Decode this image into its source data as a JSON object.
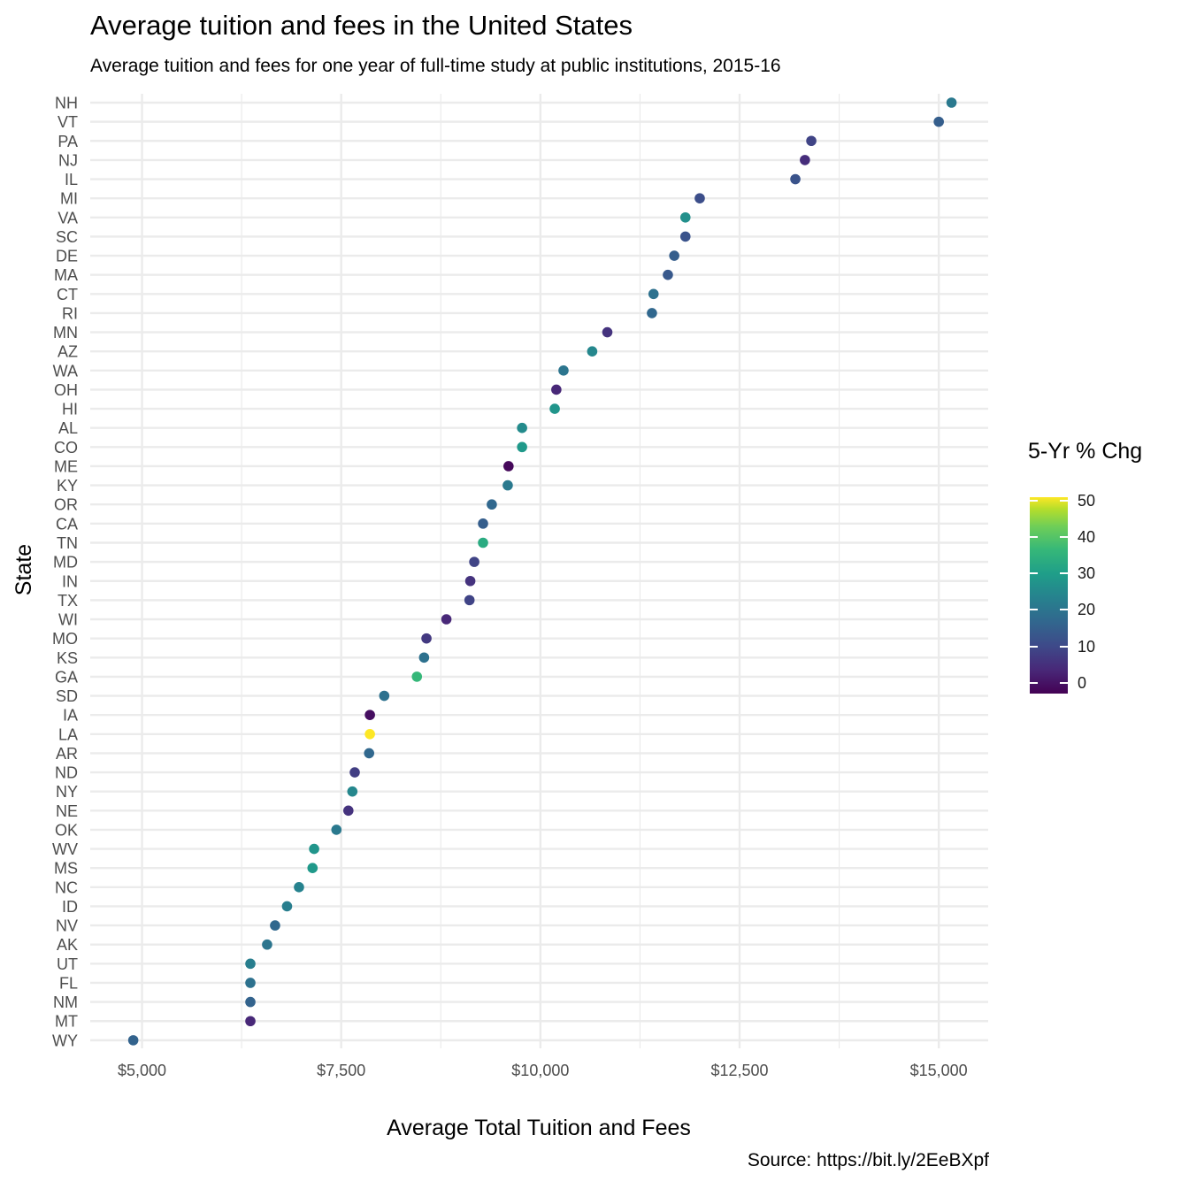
{
  "chart_data": {
    "type": "scatter",
    "title": "Average tuition and fees in the United States",
    "subtitle": "Average tuition and fees for one year of full-time study at public institutions, 2015-16",
    "caption": "Source: https://bit.ly/2EeBXpf",
    "xlabel": "Average Total Tuition and Fees",
    "ylabel": "State",
    "x_ticks": [
      "$5,000",
      "$7,500",
      "$10,000",
      "$12,500",
      "$15,000"
    ],
    "x_tick_values": [
      5000,
      7500,
      10000,
      12500,
      15000
    ],
    "xlim": [
      4350,
      15620
    ],
    "grid": true,
    "legend": {
      "title": "5-Yr % Chg",
      "placement": "right",
      "ticks": [
        "0",
        "10",
        "20",
        "30",
        "40",
        "50"
      ],
      "tick_values": [
        0,
        10,
        20,
        30,
        40,
        50
      ],
      "range": [
        -3,
        51
      ],
      "palette": "viridis",
      "colors": [
        "#440154",
        "#482878",
        "#3e4989",
        "#31688e",
        "#26828e",
        "#1f9e89",
        "#35b779",
        "#6ece58",
        "#b5de2b",
        "#fde725"
      ]
    },
    "points": [
      {
        "state": "NH",
        "x": 15160,
        "pct": 19
      },
      {
        "state": "VT",
        "x": 15000,
        "pct": 13
      },
      {
        "state": "PA",
        "x": 13400,
        "pct": 8
      },
      {
        "state": "NJ",
        "x": 13320,
        "pct": 4
      },
      {
        "state": "IL",
        "x": 13200,
        "pct": 11
      },
      {
        "state": "MI",
        "x": 12000,
        "pct": 10
      },
      {
        "state": "VA",
        "x": 11820,
        "pct": 24
      },
      {
        "state": "SC",
        "x": 11820,
        "pct": 11
      },
      {
        "state": "DE",
        "x": 11680,
        "pct": 13
      },
      {
        "state": "MA",
        "x": 11600,
        "pct": 12
      },
      {
        "state": "CT",
        "x": 11420,
        "pct": 17
      },
      {
        "state": "RI",
        "x": 11400,
        "pct": 15
      },
      {
        "state": "MN",
        "x": 10840,
        "pct": 5
      },
      {
        "state": "AZ",
        "x": 10650,
        "pct": 22
      },
      {
        "state": "WA",
        "x": 10290,
        "pct": 18
      },
      {
        "state": "OH",
        "x": 10200,
        "pct": 3
      },
      {
        "state": "HI",
        "x": 10180,
        "pct": 25
      },
      {
        "state": "AL",
        "x": 9770,
        "pct": 23
      },
      {
        "state": "CO",
        "x": 9770,
        "pct": 26
      },
      {
        "state": "ME",
        "x": 9600,
        "pct": -2
      },
      {
        "state": "KY",
        "x": 9590,
        "pct": 19
      },
      {
        "state": "OR",
        "x": 9390,
        "pct": 15
      },
      {
        "state": "CA",
        "x": 9280,
        "pct": 13
      },
      {
        "state": "TN",
        "x": 9280,
        "pct": 30
      },
      {
        "state": "MD",
        "x": 9170,
        "pct": 8
      },
      {
        "state": "IN",
        "x": 9120,
        "pct": 5
      },
      {
        "state": "TX",
        "x": 9110,
        "pct": 8
      },
      {
        "state": "WI",
        "x": 8820,
        "pct": 3
      },
      {
        "state": "MO",
        "x": 8570,
        "pct": 6
      },
      {
        "state": "KS",
        "x": 8540,
        "pct": 17
      },
      {
        "state": "GA",
        "x": 8450,
        "pct": 33
      },
      {
        "state": "SD",
        "x": 8040,
        "pct": 17
      },
      {
        "state": "IA",
        "x": 7860,
        "pct": -1
      },
      {
        "state": "LA",
        "x": 7860,
        "pct": 51
      },
      {
        "state": "AR",
        "x": 7850,
        "pct": 15
      },
      {
        "state": "ND",
        "x": 7670,
        "pct": 7
      },
      {
        "state": "NY",
        "x": 7640,
        "pct": 22
      },
      {
        "state": "NE",
        "x": 7590,
        "pct": 5
      },
      {
        "state": "OK",
        "x": 7440,
        "pct": 19
      },
      {
        "state": "WV",
        "x": 7160,
        "pct": 25
      },
      {
        "state": "MS",
        "x": 7140,
        "pct": 26
      },
      {
        "state": "NC",
        "x": 6970,
        "pct": 21
      },
      {
        "state": "ID",
        "x": 6820,
        "pct": 20
      },
      {
        "state": "NV",
        "x": 6670,
        "pct": 15
      },
      {
        "state": "AK",
        "x": 6570,
        "pct": 18
      },
      {
        "state": "UT",
        "x": 6360,
        "pct": 20
      },
      {
        "state": "FL",
        "x": 6360,
        "pct": 17
      },
      {
        "state": "NM",
        "x": 6360,
        "pct": 14
      },
      {
        "state": "MT",
        "x": 6360,
        "pct": 3
      },
      {
        "state": "WY",
        "x": 4890,
        "pct": 14
      }
    ]
  }
}
